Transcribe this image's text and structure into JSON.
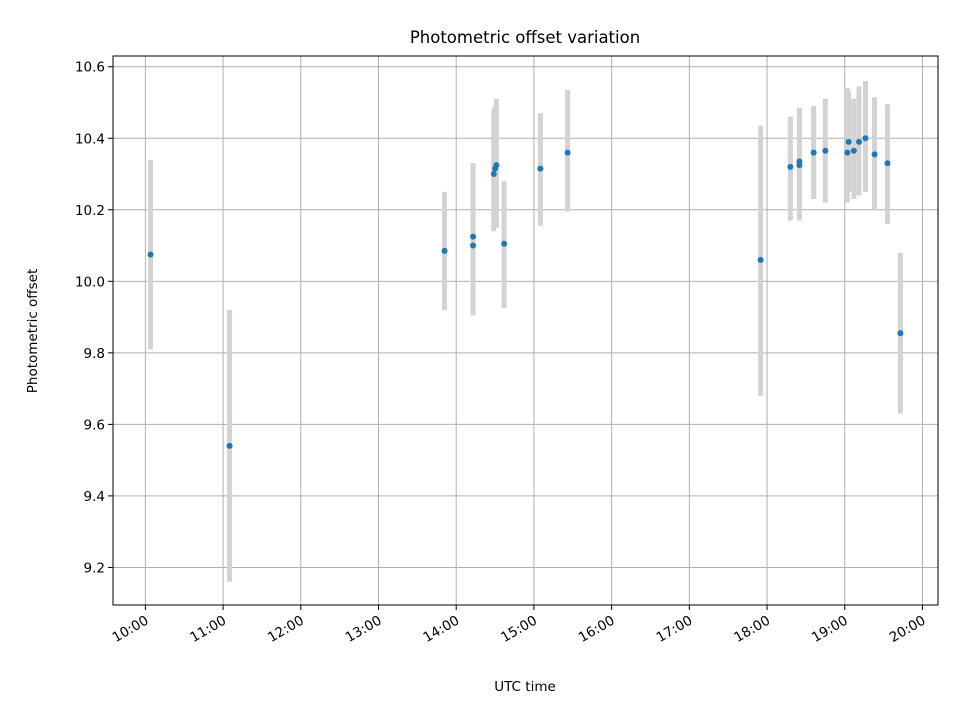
{
  "chart_data": {
    "type": "scatter",
    "title": "Photometric offset variation",
    "xlabel": "UTC time",
    "ylabel": "Photometric offset",
    "x_ticks": [
      "10:00",
      "11:00",
      "12:00",
      "13:00",
      "14:00",
      "15:00",
      "16:00",
      "17:00",
      "18:00",
      "19:00",
      "20:00"
    ],
    "y_ticks": [
      "9.2",
      "9.4",
      "9.6",
      "9.8",
      "10.0",
      "10.2",
      "10.4",
      "10.6"
    ],
    "xlim": [
      "09:35",
      "20:12"
    ],
    "ylim": [
      9.095,
      10.63
    ],
    "grid": true,
    "colors": {
      "points": "#1f77b4",
      "errorbars": "#d3d3d3",
      "grid": "#b0b0b0"
    },
    "points": [
      {
        "x": "10:04",
        "y": 10.075,
        "err_low": 9.81,
        "err_high": 10.34
      },
      {
        "x": "11:05",
        "y": 9.54,
        "err_low": 9.16,
        "err_high": 9.92
      },
      {
        "x": "13:51",
        "y": 10.085,
        "err_low": 9.92,
        "err_high": 10.25
      },
      {
        "x": "14:13",
        "y": 10.125,
        "err_low": 9.905,
        "err_high": 10.33
      },
      {
        "x": "14:13",
        "y": 10.1,
        "err_low": 9.905,
        "err_high": 10.33
      },
      {
        "x": "14:29",
        "y": 10.3,
        "err_low": 10.14,
        "err_high": 10.48
      },
      {
        "x": "14:30",
        "y": 10.315,
        "err_low": 10.15,
        "err_high": 10.49
      },
      {
        "x": "14:31",
        "y": 10.325,
        "err_low": 10.15,
        "err_high": 10.51
      },
      {
        "x": "14:37",
        "y": 10.105,
        "err_low": 9.925,
        "err_high": 10.28
      },
      {
        "x": "15:05",
        "y": 10.315,
        "err_low": 10.155,
        "err_high": 10.47
      },
      {
        "x": "15:26",
        "y": 10.36,
        "err_low": 10.195,
        "err_high": 10.535
      },
      {
        "x": "17:55",
        "y": 10.06,
        "err_low": 9.68,
        "err_high": 10.435
      },
      {
        "x": "18:18",
        "y": 10.32,
        "err_low": 10.17,
        "err_high": 10.46
      },
      {
        "x": "18:25",
        "y": 10.325,
        "err_low": 10.17,
        "err_high": 10.485
      },
      {
        "x": "18:25",
        "y": 10.335,
        "err_low": 10.17,
        "err_high": 10.485
      },
      {
        "x": "18:36",
        "y": 10.36,
        "err_low": 10.23,
        "err_high": 10.49
      },
      {
        "x": "18:45",
        "y": 10.365,
        "err_low": 10.22,
        "err_high": 10.51
      },
      {
        "x": "19:02",
        "y": 10.36,
        "err_low": 10.22,
        "err_high": 10.54
      },
      {
        "x": "19:03",
        "y": 10.39,
        "err_low": 10.25,
        "err_high": 10.53
      },
      {
        "x": "19:07",
        "y": 10.365,
        "err_low": 10.23,
        "err_high": 10.51
      },
      {
        "x": "19:11",
        "y": 10.39,
        "err_low": 10.24,
        "err_high": 10.545
      },
      {
        "x": "19:16",
        "y": 10.4,
        "err_low": 10.25,
        "err_high": 10.56
      },
      {
        "x": "19:23",
        "y": 10.355,
        "err_low": 10.2,
        "err_high": 10.515
      },
      {
        "x": "19:33",
        "y": 10.33,
        "err_low": 10.16,
        "err_high": 10.495
      },
      {
        "x": "19:43",
        "y": 9.855,
        "err_low": 9.63,
        "err_high": 10.08
      }
    ]
  }
}
